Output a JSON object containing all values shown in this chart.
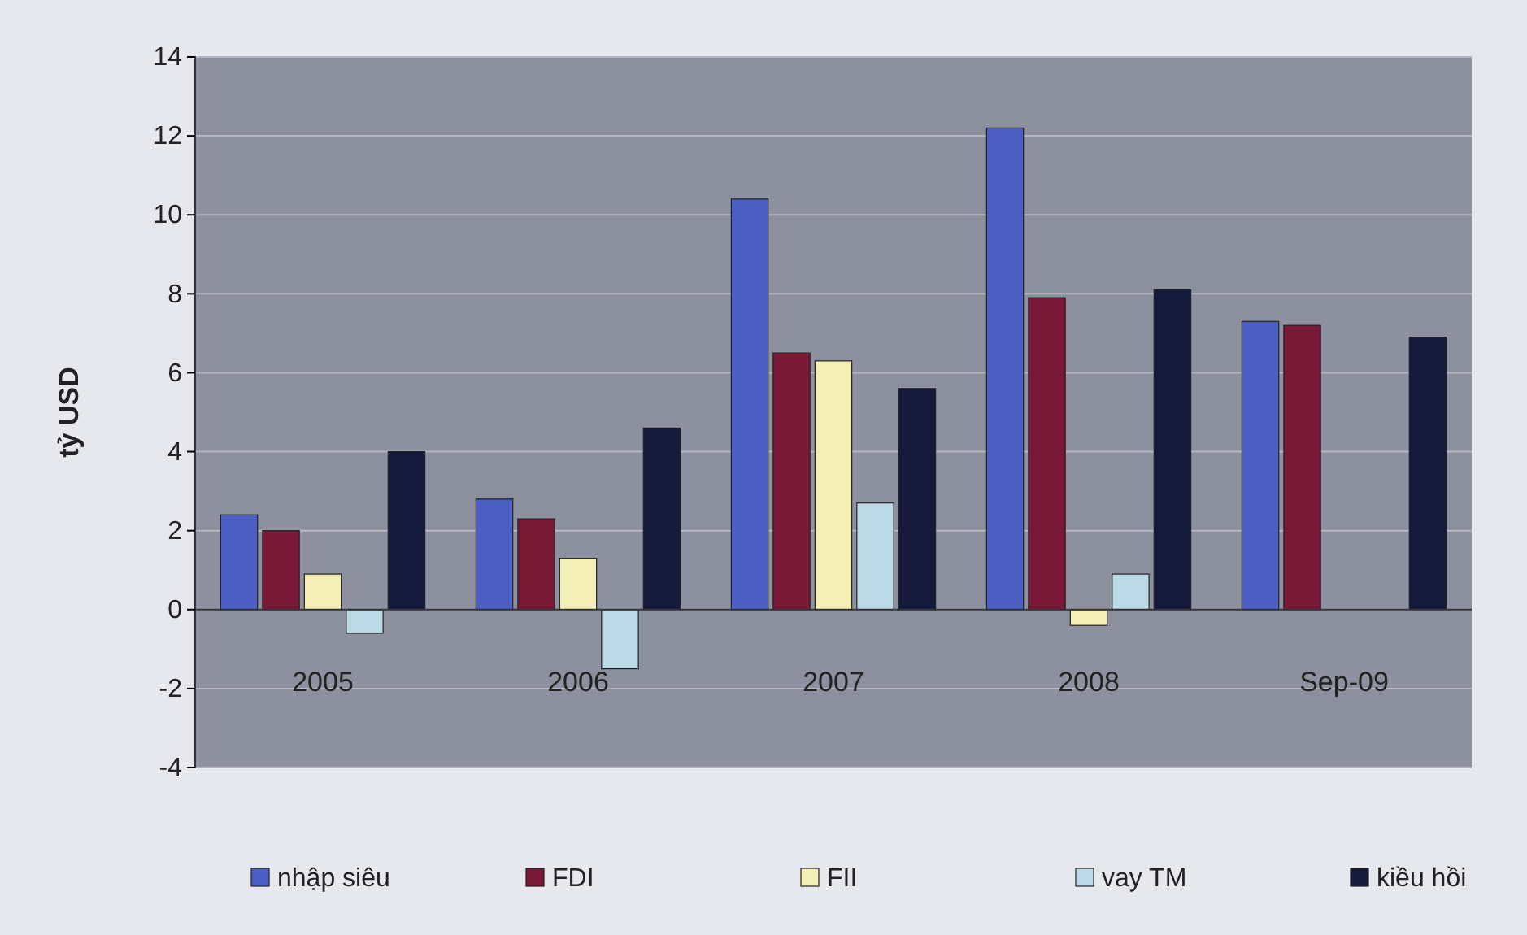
{
  "chart_data": {
    "type": "bar",
    "ylabel": "tỷ USD",
    "categories": [
      "2005",
      "2006",
      "2007",
      "2008",
      "Sep-09"
    ],
    "series": [
      {
        "name": "nhập siêu",
        "color": "#4a5ec4",
        "values": [
          2.4,
          2.8,
          10.4,
          12.2,
          7.3
        ]
      },
      {
        "name": "FDI",
        "color": "#7a1838",
        "values": [
          2.0,
          2.3,
          6.5,
          7.9,
          7.2
        ]
      },
      {
        "name": "FII",
        "color": "#f4efb4",
        "values": [
          0.9,
          1.3,
          6.3,
          -0.4,
          null
        ]
      },
      {
        "name": "vay TM",
        "color": "#bcd9e6",
        "values": [
          -0.6,
          -1.5,
          2.7,
          0.9,
          null
        ]
      },
      {
        "name": "kiều hồi",
        "color": "#151a3c",
        "values": [
          4.0,
          4.6,
          5.6,
          8.1,
          6.9
        ]
      }
    ],
    "ylim": [
      -4,
      14
    ],
    "yticks": [
      -4,
      -2,
      0,
      2,
      4,
      6,
      8,
      10,
      12,
      14
    ],
    "grid": "y",
    "legend": "bottom"
  }
}
